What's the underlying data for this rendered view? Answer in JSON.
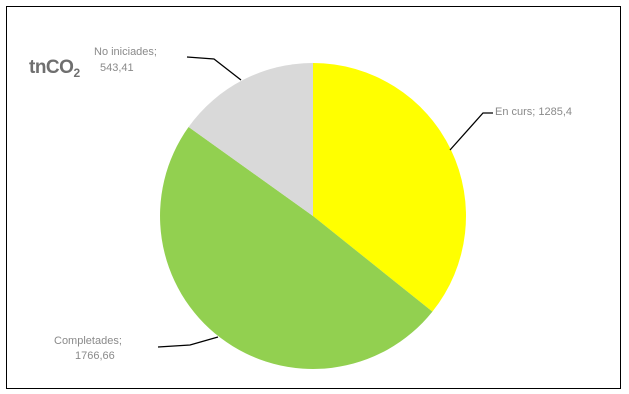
{
  "chart_data": {
    "type": "pie",
    "unit_label": {
      "main": "tnCO",
      "sub": "2"
    },
    "slices": [
      {
        "label": "En curs",
        "value_text": "1285,4",
        "value": 1285.4,
        "color": "#ffff00"
      },
      {
        "label": "Completades",
        "value_text": "1766,66",
        "value": 1766.66,
        "color": "#92d050"
      },
      {
        "label": "No iniciades",
        "value_text": "543,41",
        "value": 543.41,
        "color": "#d9d9d9"
      }
    ],
    "legend": "none",
    "label_texts": {
      "en_curs": "En curs; 1285,4",
      "completades_line1": "Completades;",
      "completades_line2": "1766,66",
      "no_iniciades_line1": "No iniciades;",
      "no_iniciades_line2": "543,41"
    }
  }
}
